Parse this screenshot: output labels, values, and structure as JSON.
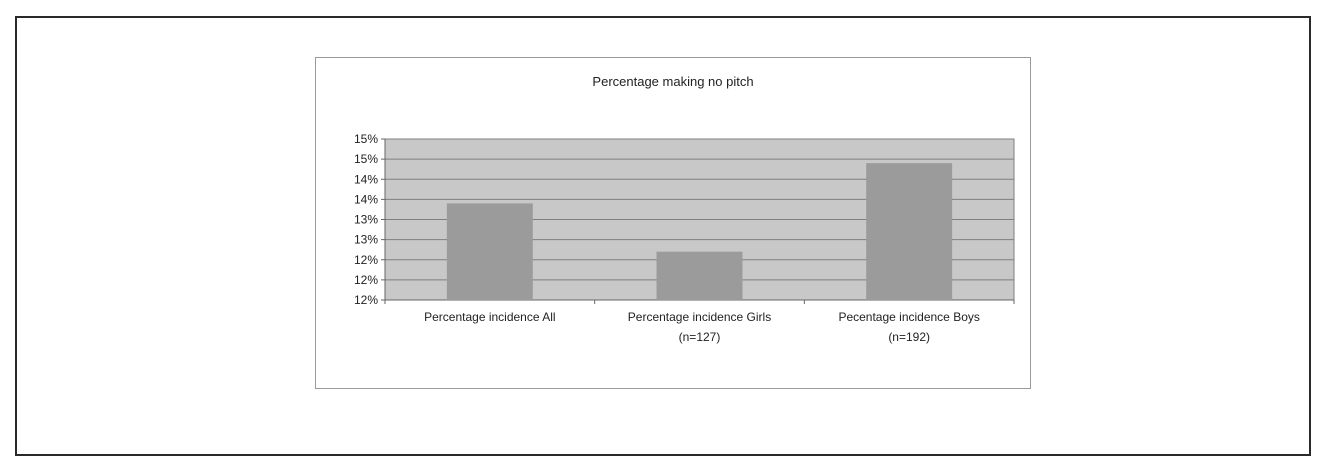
{
  "chart_data": {
    "type": "bar",
    "title": "Percentage making no pitch",
    "categories": [
      [
        "Percentage incidence All"
      ],
      [
        "Percentage incidence Girls",
        "(n=127)"
      ],
      [
        "Pecentage incidence Boys",
        "(n=192)"
      ]
    ],
    "values": [
      13.9,
      12.7,
      14.9
    ],
    "ylim": [
      11.5,
      15.5
    ],
    "ytick_values": [
      11.5,
      12.0,
      12.5,
      13.0,
      13.5,
      14.0,
      14.5,
      15.0,
      15.5
    ],
    "ytick_labels": [
      "12%",
      "12%",
      "12%",
      "13%",
      "13%",
      "14%",
      "14%",
      "15%",
      "15%"
    ],
    "grid": true,
    "colors": {
      "plot_bg": "#c8c8c8",
      "bar": "#9b9b9b",
      "grid": "#7f7f7f",
      "axis": "#666666"
    }
  }
}
